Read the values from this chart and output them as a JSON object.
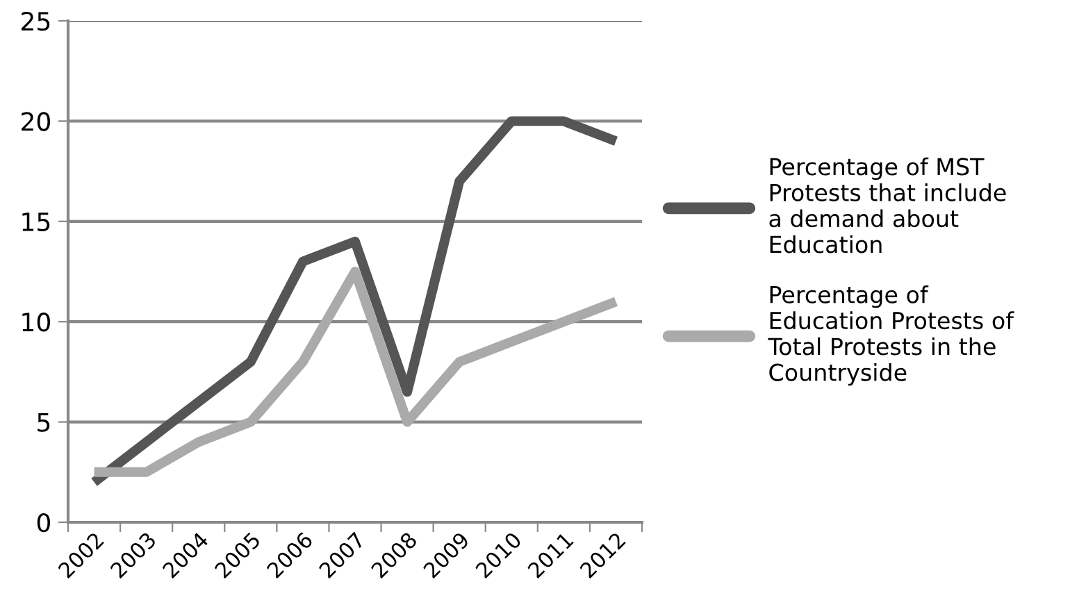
{
  "chart_data": {
    "type": "line",
    "categories": [
      "2002",
      "2003",
      "2004",
      "2005",
      "2006",
      "2007",
      "2008",
      "2009",
      "2010",
      "2011",
      "2012"
    ],
    "series": [
      {
        "name": "Percentage of MST Protests that include a demand about Education",
        "color": "#555555",
        "values": [
          2,
          4,
          6,
          8,
          13,
          14,
          6.5,
          17,
          20,
          20,
          19
        ]
      },
      {
        "name": "Percentage of Education Protests of Total Protests in the Countryside",
        "color": "#aaaaaa",
        "values": [
          2.5,
          2.5,
          4,
          5,
          8,
          12.5,
          5,
          8,
          9,
          10,
          11
        ]
      }
    ],
    "ylim": [
      0,
      25
    ],
    "yticks": [
      0,
      5,
      10,
      15,
      20,
      25
    ],
    "grid": "y",
    "legend": "right",
    "marker": "none",
    "line_style": "solid"
  }
}
